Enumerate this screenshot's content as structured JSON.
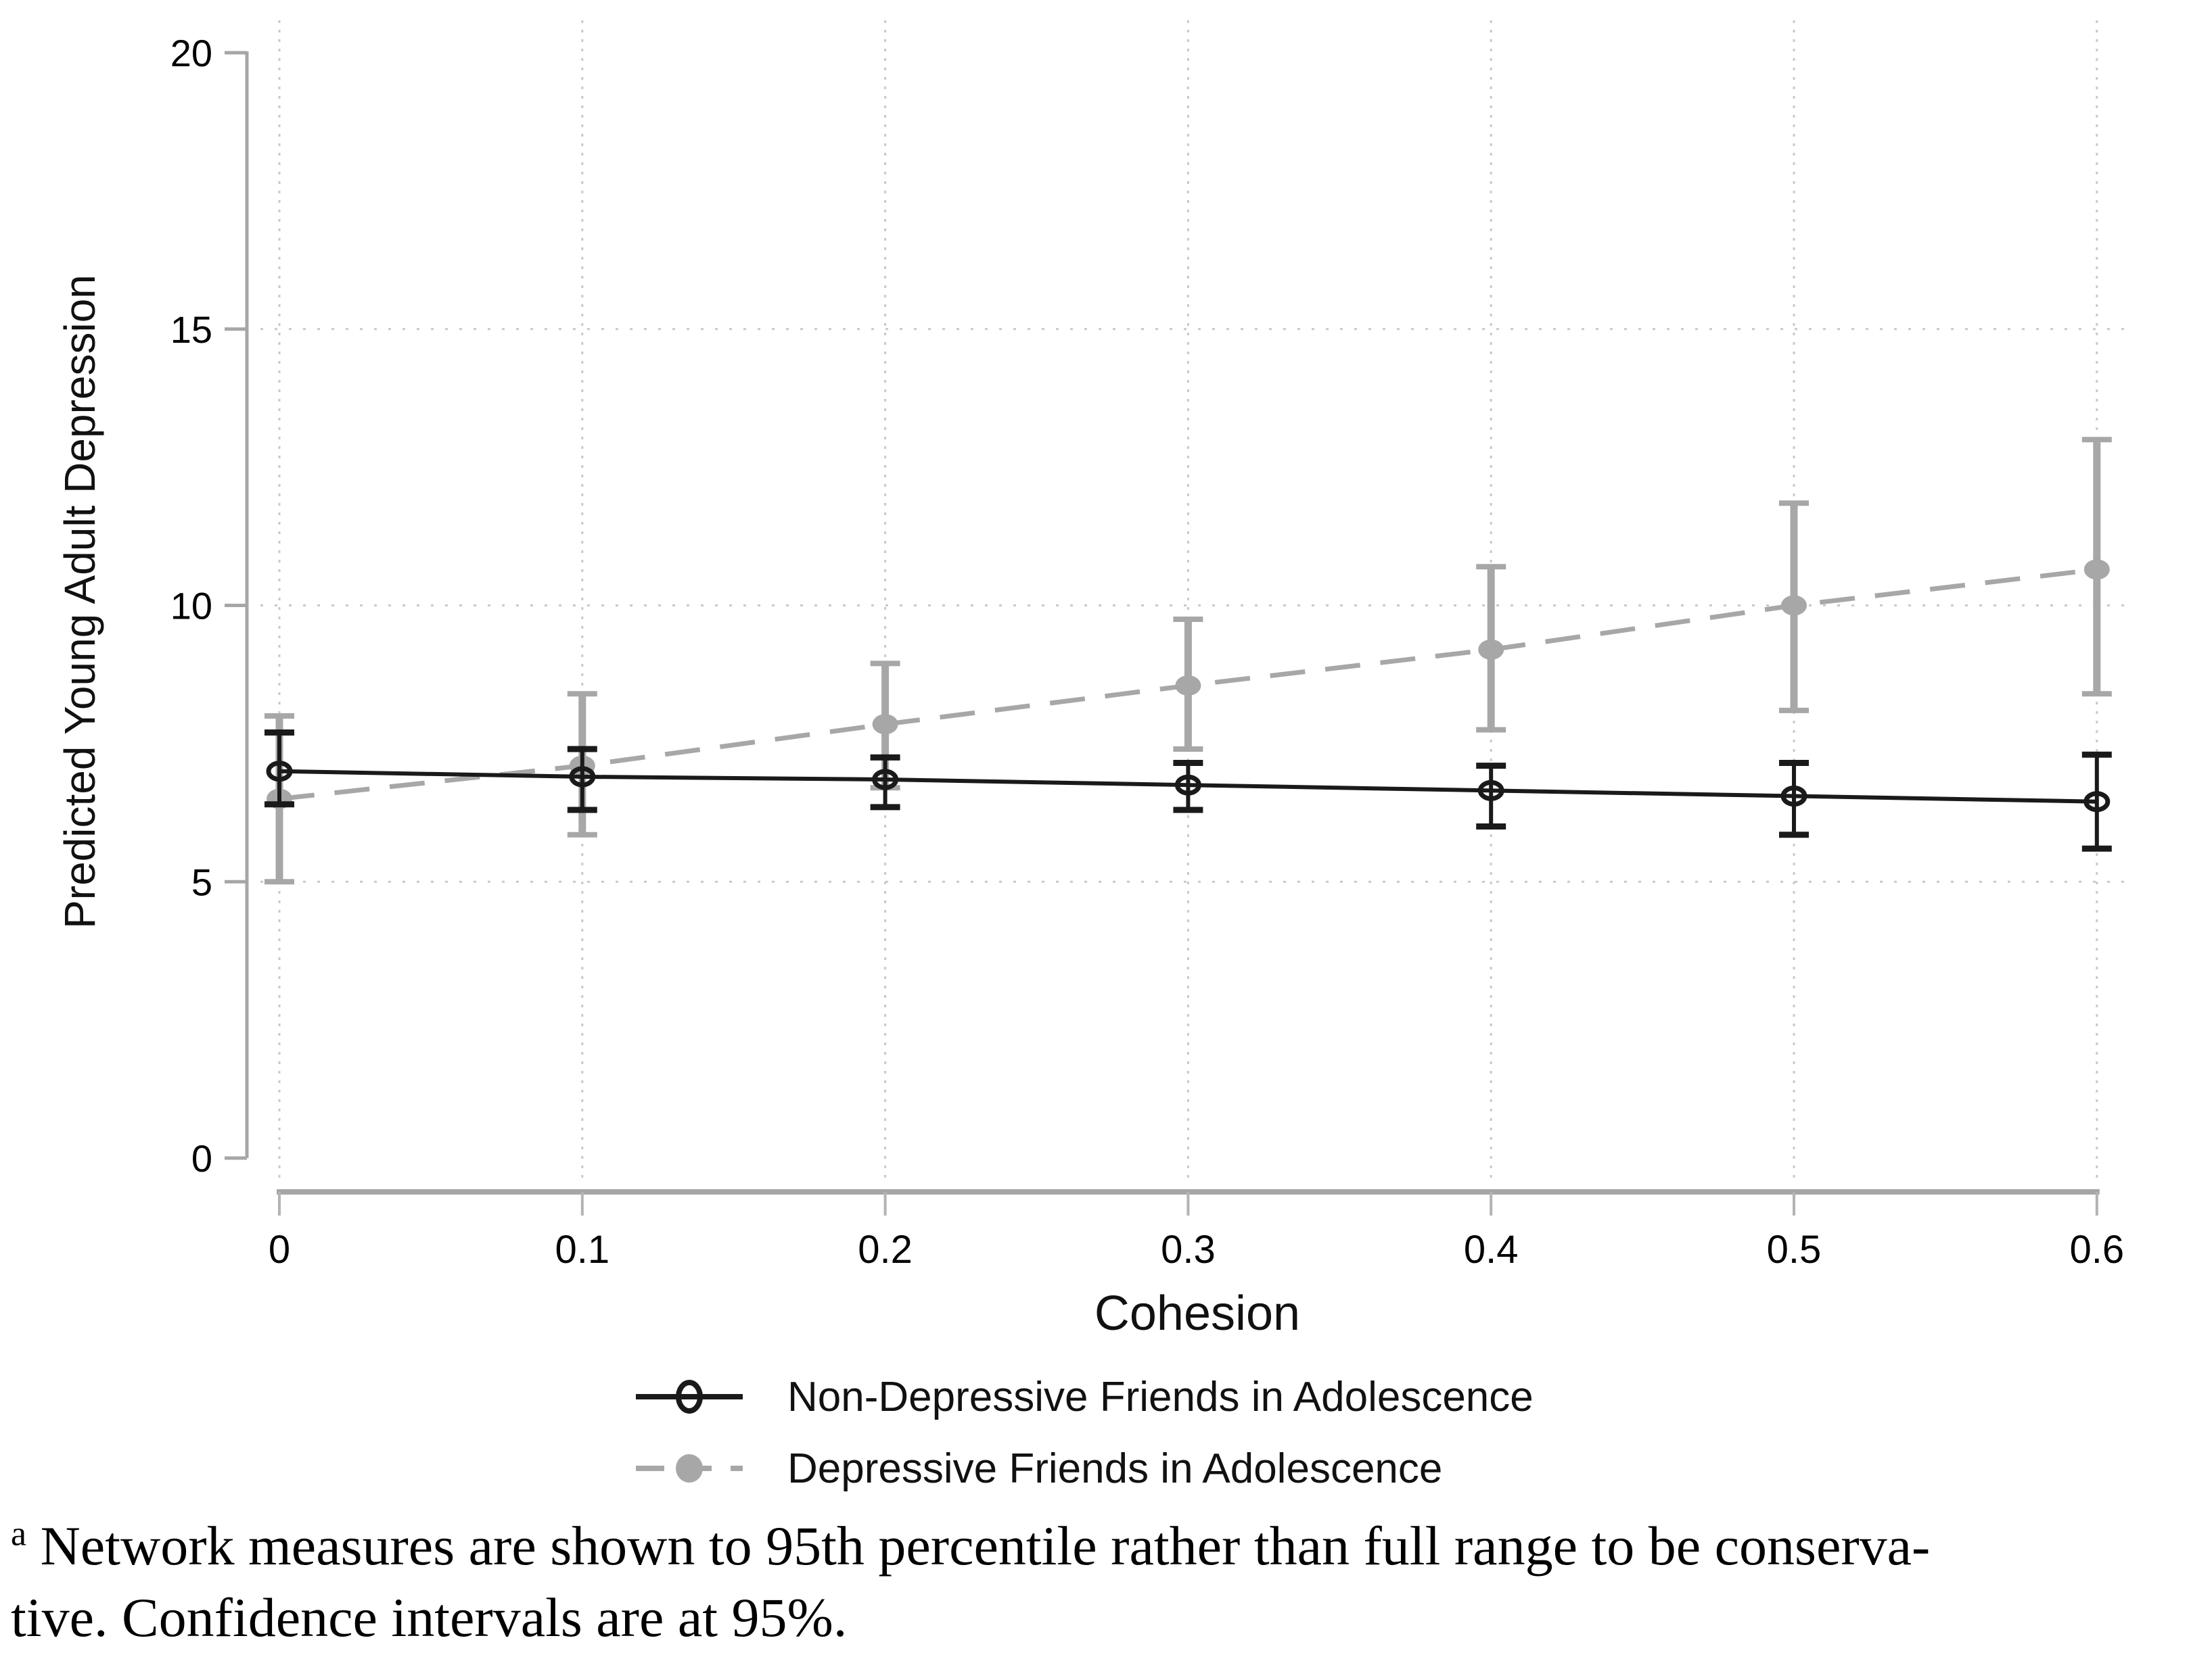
{
  "chart_data": {
    "type": "line",
    "title": "",
    "xlabel": "Cohesion",
    "ylabel": "Predicted Young Adult Depression",
    "xlim": [
      0,
      0.6
    ],
    "ylim": [
      0,
      20
    ],
    "x_ticks": [
      0,
      0.1,
      0.2,
      0.3,
      0.4,
      0.5,
      0.6
    ],
    "x_tick_labels": [
      "0",
      "0.1",
      "0.2",
      "0.3",
      "0.4",
      "0.5",
      "0.6"
    ],
    "y_ticks": [
      0,
      5,
      10,
      15,
      20
    ],
    "y_tick_labels": [
      "0",
      "5",
      "10",
      "15",
      "20"
    ],
    "grid": "dotted",
    "legend_position": "bottom-center",
    "error_bars": "95% confidence intervals",
    "colors": {
      "non_depressive": "#1a1a1a",
      "depressive": "#a7a7a7",
      "axis": "#a6a6a6",
      "gridline": "#c9c9c9",
      "tick_text": "#000000"
    },
    "series": [
      {
        "name": "Non-Depressive Friends in Adolescence",
        "line_style": "solid",
        "marker": "open-circle",
        "color": "#1a1a1a",
        "x": [
          0,
          0.1,
          0.2,
          0.3,
          0.4,
          0.5,
          0.6
        ],
        "y": [
          7.0,
          6.9,
          6.85,
          6.75,
          6.65,
          6.55,
          6.45
        ],
        "ci_low": [
          6.4,
          6.3,
          6.35,
          6.3,
          6.0,
          5.85,
          5.6
        ],
        "ci_high": [
          7.7,
          7.4,
          7.25,
          7.15,
          7.1,
          7.15,
          7.3
        ]
      },
      {
        "name": "Depressive Friends in Adolescence",
        "line_style": "dashed",
        "marker": "filled-circle",
        "color": "#a7a7a7",
        "x": [
          0,
          0.1,
          0.2,
          0.3,
          0.4,
          0.5,
          0.6
        ],
        "y": [
          6.5,
          7.1,
          7.85,
          8.55,
          9.2,
          10.0,
          10.65
        ],
        "ci_low": [
          5.0,
          5.85,
          6.7,
          7.4,
          7.75,
          8.1,
          8.4
        ],
        "ci_high": [
          8.0,
          8.4,
          8.95,
          9.75,
          10.7,
          11.85,
          13.0
        ]
      }
    ]
  },
  "legend": {
    "item1": "Non-Depressive Friends in Adolescence",
    "item2": "Depressive Friends in Adolescence"
  },
  "footnote": {
    "marker": "a",
    "line1": "Network measures are shown to 95th percentile rather than full range to be conserva-",
    "line2": "tive. Confidence intervals are at 95%."
  }
}
